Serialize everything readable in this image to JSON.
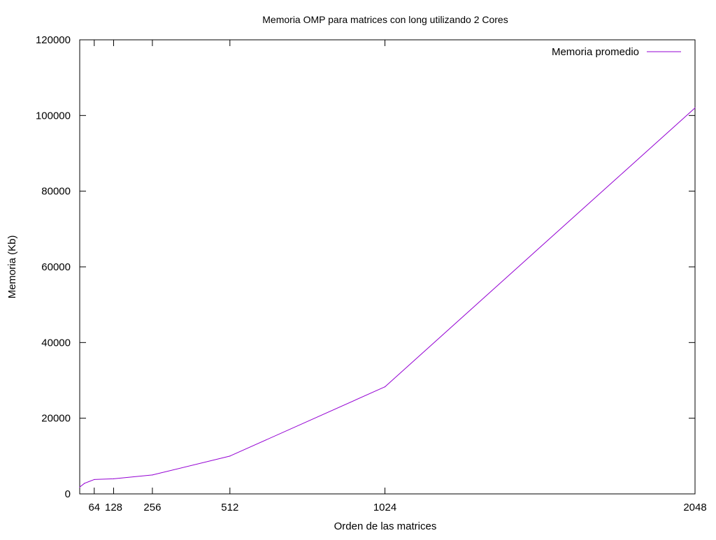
{
  "chart_data": {
    "type": "line",
    "title": "Memoria OMP para matrices con long utilizando 2 Cores",
    "xlabel": "Orden de las matrices",
    "ylabel": "Memoria (Kb)",
    "xlim": [
      16,
      2048
    ],
    "ylim": [
      0,
      120000
    ],
    "x_ticks": [
      64,
      128,
      256,
      512,
      1024,
      2048
    ],
    "y_ticks": [
      0,
      20000,
      40000,
      60000,
      80000,
      100000,
      120000
    ],
    "grid": false,
    "legend_position": "top-right",
    "series": [
      {
        "name": "Memoria promedio",
        "color": "#9400d3",
        "x": [
          16,
          32,
          64,
          128,
          256,
          512,
          1024,
          2048
        ],
        "y": [
          1800,
          2800,
          3800,
          4000,
          5000,
          10000,
          28300,
          102000
        ]
      }
    ]
  }
}
